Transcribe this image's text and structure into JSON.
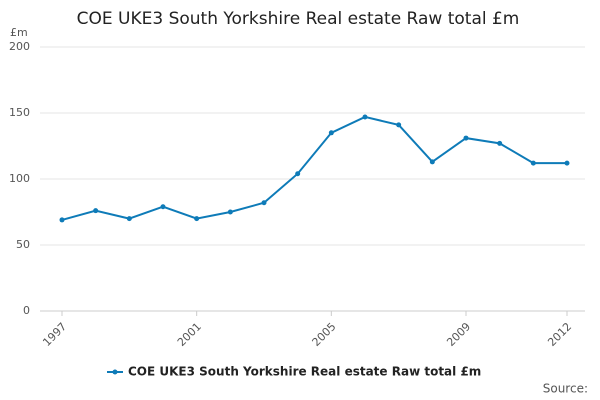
{
  "chart_data": {
    "type": "line",
    "title": "COE UKE3 South Yorkshire Real estate Raw total £m",
    "y_label": "£m",
    "source": "Source:",
    "x": [
      1997,
      1998,
      1999,
      2000,
      2001,
      2002,
      2003,
      2004,
      2005,
      2006,
      2007,
      2008,
      2009,
      2010,
      2011,
      2012
    ],
    "series": [
      {
        "name": "COE UKE3 South Yorkshire Real estate Raw total £m",
        "color": "#0e7bb8",
        "values": [
          69,
          76,
          70,
          79,
          70,
          75,
          82,
          104,
          135,
          147,
          141,
          113,
          131,
          127,
          112,
          112
        ]
      }
    ],
    "xlim": [
      1997,
      2012
    ],
    "xticks": [
      1997,
      2001,
      2005,
      2009,
      2012
    ],
    "ylim": [
      0,
      200
    ],
    "yticks": [
      0,
      50,
      100,
      150,
      200
    ],
    "grid": true
  }
}
